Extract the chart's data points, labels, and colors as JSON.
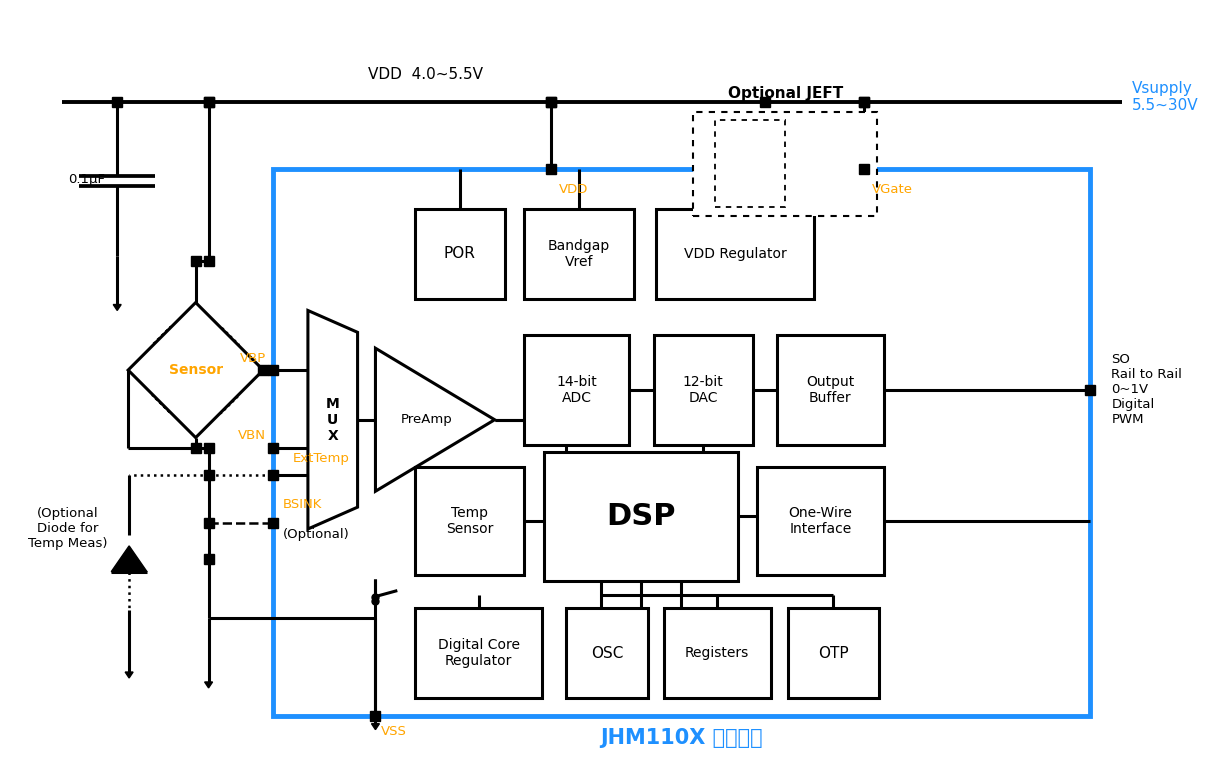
{
  "bg_color": "#ffffff",
  "black": "#000000",
  "blue": "#1E90FF",
  "orange": "#FFA500",
  "title": "JHM110X 典型应用",
  "vdd_label": "VDD  4.0~5.5V",
  "vsupply_label": "Vsupply\n5.5~30V",
  "optional_jeft": "Optional JEFT",
  "vdd_pin": "VDD",
  "vgate_pin": "VGate",
  "vbp_label": "VBP",
  "vbn_label": "VBN",
  "exttemp_label": "ExtTemp",
  "bsink_label": "BSINK",
  "optional_bsink": "(Optional)",
  "vss_label": "VSS",
  "cap_label": "0.1μF",
  "optional_diode": "(Optional\nDiode for\nTemp Meas)",
  "so_label": "SO\nRail to Rail\n0~1V\nDigital\nPWM"
}
